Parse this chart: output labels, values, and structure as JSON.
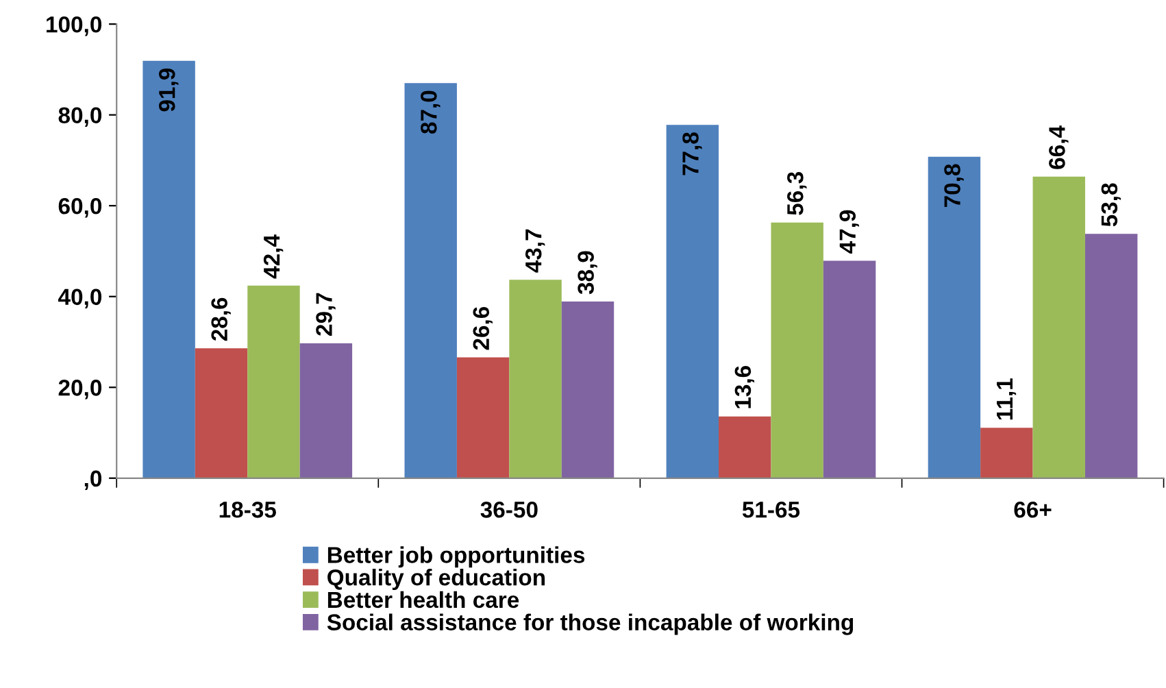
{
  "chart_data": {
    "type": "bar",
    "categories": [
      "18-35",
      "36-50",
      "51-65",
      "66+"
    ],
    "series": [
      {
        "name": "Better job opportunities",
        "color": "#4f81bd",
        "values": [
          91.9,
          87.0,
          77.8,
          70.8
        ],
        "value_labels": [
          "91,9",
          "87,0",
          "77,8",
          "70,8"
        ]
      },
      {
        "name": "Quality of education",
        "color": "#c0504d",
        "values": [
          28.6,
          26.6,
          13.6,
          11.1
        ],
        "value_labels": [
          "28,6",
          "26,6",
          "13,6",
          "11,1"
        ]
      },
      {
        "name": "Better health care",
        "color": "#9bbb59",
        "values": [
          42.4,
          43.7,
          56.3,
          66.4
        ],
        "value_labels": [
          "42,4",
          "43,7",
          "56,3",
          "66,4"
        ]
      },
      {
        "name": "Social assistance for those incapable of working",
        "color": "#8064a2",
        "values": [
          29.7,
          38.9,
          47.9,
          53.8
        ],
        "value_labels": [
          "29,7",
          "38,9",
          "47,9",
          "53,8"
        ]
      }
    ],
    "ylim": [
      0,
      100
    ],
    "yticks": [
      {
        "value": 0,
        "label": ",0"
      },
      {
        "value": 20,
        "label": "20,0"
      },
      {
        "value": 40,
        "label": "40,0"
      },
      {
        "value": 60,
        "label": "60,0"
      },
      {
        "value": 80,
        "label": "80,0"
      },
      {
        "value": 100,
        "label": "100,0"
      }
    ],
    "grid": false,
    "legend": "bottom"
  }
}
